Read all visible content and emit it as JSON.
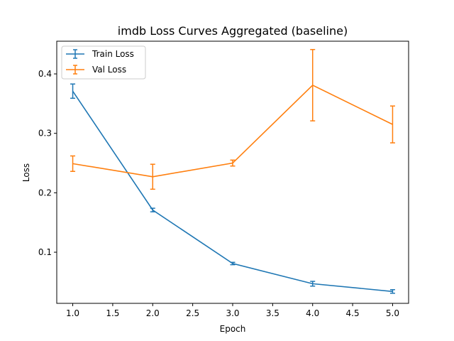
{
  "chart_data": {
    "type": "line",
    "title": "imdb Loss Curves Aggregated (baseline)",
    "xlabel": "Epoch",
    "ylabel": "Loss",
    "xlim": [
      0.8,
      5.2
    ],
    "ylim": [
      0.014,
      0.455
    ],
    "x_ticks": [
      "1.0",
      "1.5",
      "2.0",
      "2.5",
      "3.0",
      "3.5",
      "4.0",
      "4.5",
      "5.0"
    ],
    "x_tick_values": [
      1.0,
      1.5,
      2.0,
      2.5,
      3.0,
      3.5,
      4.0,
      4.5,
      5.0
    ],
    "y_ticks": [
      "0.1",
      "0.2",
      "0.3",
      "0.4"
    ],
    "y_tick_values": [
      0.1,
      0.2,
      0.3,
      0.4
    ],
    "grid": false,
    "legend_position": "top-left",
    "x": [
      1,
      2,
      3,
      4,
      5
    ],
    "series": [
      {
        "name": "Train Loss",
        "color": "#1f77b4",
        "values": [
          0.371,
          0.171,
          0.081,
          0.047,
          0.034
        ],
        "errors": [
          0.012,
          0.003,
          0.002,
          0.004,
          0.003
        ]
      },
      {
        "name": "Val Loss",
        "color": "#ff7f0e",
        "values": [
          0.249,
          0.227,
          0.25,
          0.381,
          0.315
        ],
        "errors": [
          0.013,
          0.021,
          0.005,
          0.06,
          0.031
        ]
      }
    ]
  }
}
